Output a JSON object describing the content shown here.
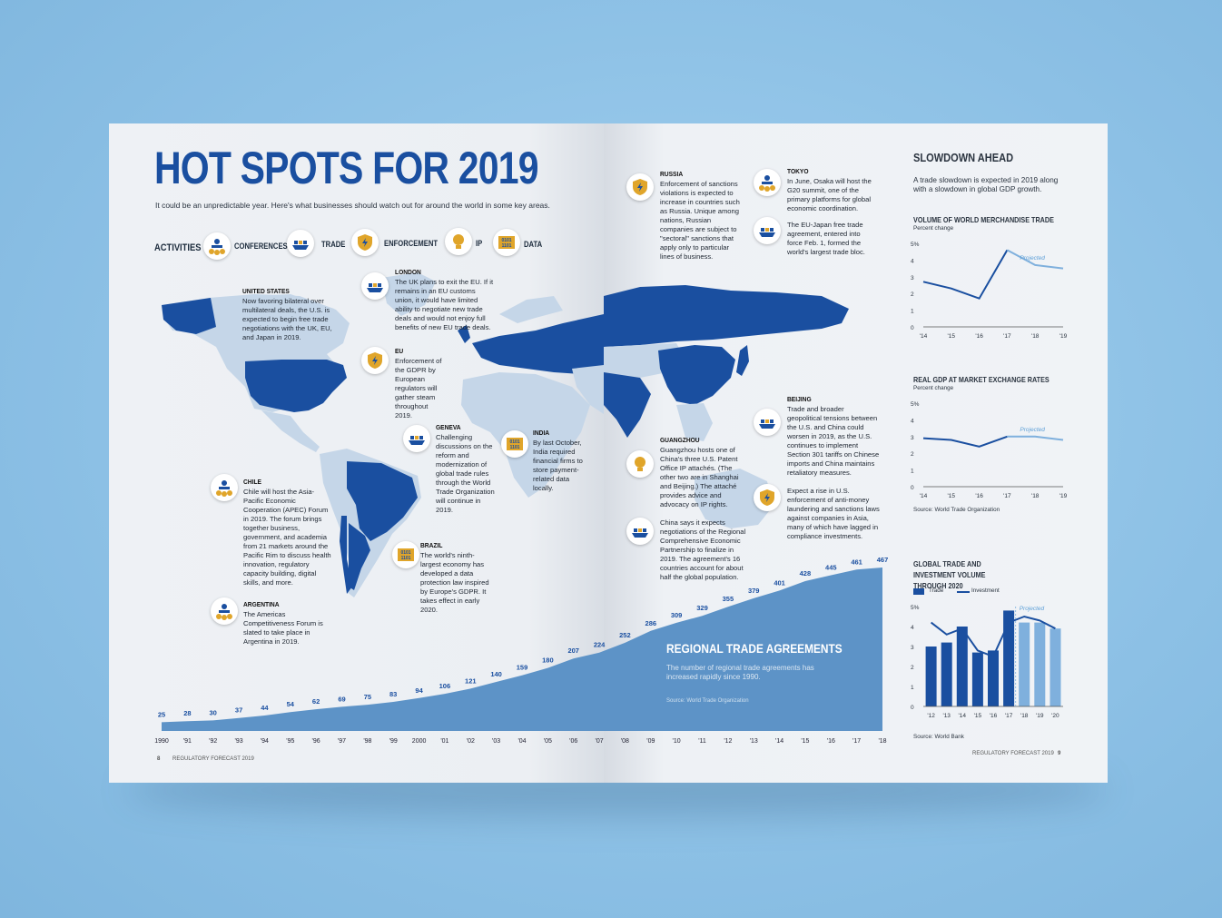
{
  "title": "HOT SPOTS FOR 2019",
  "subtitle": "It could be an unpredictable year. Here's what businesses should watch out for around the world in some key areas.",
  "activities": {
    "label": "ACTIVITIES",
    "items": [
      {
        "label": "CONFERENCES",
        "icon": "conference-icon"
      },
      {
        "label": "TRADE",
        "icon": "ship-icon"
      },
      {
        "label": "ENFORCEMENT",
        "icon": "shield-icon"
      },
      {
        "label": "IP",
        "icon": "lightbulb-icon"
      },
      {
        "label": "DATA",
        "icon": "binary-data-icon"
      }
    ]
  },
  "notes": {
    "us": {
      "title": "UNITED STATES",
      "text": "Now favoring bilateral over multilateral deals, the U.S. is expected to begin free trade negotiations with the UK, EU, and Japan in 2019."
    },
    "london": {
      "title": "LONDON",
      "text": "The UK plans to exit the EU. If it remains in an EU customs union, it would have limited ability to negotiate new trade deals and would not enjoy full benefits of new EU trade deals."
    },
    "eu": {
      "title": "EU",
      "text": "Enforcement of the GDPR by European regulators will gather steam throughout 2019."
    },
    "geneva": {
      "title": "GENEVA",
      "text": "Challenging discussions on the reform and modernization of global trade rules through the World Trade Organization will continue in 2019."
    },
    "india": {
      "title": "INDIA",
      "text": "By last October, India required financial firms to store payment-related data locally."
    },
    "chile": {
      "title": "CHILE",
      "text": "Chile will host the Asia-Pacific Economic Cooperation (APEC) Forum in 2019. The forum brings together business, government, and academia from 21 markets around the Pacific Rim to discuss health innovation, regulatory capacity building, digital skills, and more."
    },
    "brazil": {
      "title": "BRAZIL",
      "text": "The world's ninth-largest economy has developed a data protection law inspired by Europe's GDPR. It takes effect in early 2020."
    },
    "argentina": {
      "title": "ARGENTINA",
      "text": "The Americas Competitiveness Forum is slated to take place in Argentina in 2019."
    },
    "russia": {
      "title": "RUSSIA",
      "text": "Enforcement of sanctions violations is expected to increase in countries such as Russia. Unique among nations, Russian companies are subject to \"sectoral\" sanctions that apply only to particular lines of business."
    },
    "tokyo": {
      "title": "TOKYO",
      "text": "In June, Osaka will host the G20 summit, one of the primary platforms for global economic coordination."
    },
    "japan_eu": {
      "title": "",
      "text": "The EU-Japan free trade agreement, entered into force Feb. 1, formed the world's largest trade bloc."
    },
    "beijing": {
      "title": "BEIJING",
      "text": "Trade and broader geopolitical tensions between the U.S. and China could worsen in 2019, as the U.S. continues to implement Section 301 tariffs on Chinese imports and China maintains retaliatory measures."
    },
    "guangzhou": {
      "title": "GUANGZHOU",
      "text": "Guangzhou hosts one of China's three U.S. Patent Office IP attachés. (The other two are in Shanghai and Beijing.) The attaché provides advice and advocacy on IP rights."
    },
    "asia_enf": {
      "title": "",
      "text": "Expect a rise in U.S. enforcement of anti-money laundering and sanctions laws against companies in Asia, many of which have lagged in compliance investments."
    },
    "rcep": {
      "title": "",
      "text": "China says it expects negotiations of the Regional Comprehensive Economic Partnership to finalize in 2019. The agreement's 16 countries account for about half the global population."
    }
  },
  "regional": {
    "title": "REGIONAL TRADE AGREEMENTS",
    "text": "The number of regional trade agreements has increased rapidly since 1990.",
    "source": "Source: World Trade Organization"
  },
  "sidebar": {
    "heading": "SLOWDOWN AHEAD",
    "text": "A trade slowdown is expected in 2019 along with a slowdown in global GDP growth.",
    "source1": "Source: World Trade Organization",
    "source2": "Source: World Bank"
  },
  "footer": {
    "left_page": "8",
    "left_label": "REGULATORY FORECAST 2019",
    "right_label": "REGULATORY FORECAST 2019",
    "right_page": "9"
  },
  "colors": {
    "brand_blue": "#1a4fa0",
    "light_blue": "#7fb0dd",
    "gold": "#e0a52a"
  },
  "chart_data": [
    {
      "type": "area",
      "title": "REGIONAL TRADE AGREEMENTS",
      "x": [
        "1990",
        "'91",
        "'92",
        "'93",
        "'94",
        "'95",
        "'96",
        "'97",
        "'98",
        "'99",
        "2000",
        "'01",
        "'02",
        "'03",
        "'04",
        "'05",
        "'06",
        "'07",
        "'08",
        "'09",
        "'10",
        "'11",
        "'12",
        "'13",
        "'14",
        "'15",
        "'16",
        "'17",
        "'18"
      ],
      "values": [
        25,
        28,
        30,
        37,
        44,
        54,
        62,
        69,
        75,
        83,
        94,
        106,
        121,
        140,
        159,
        180,
        207,
        224,
        252,
        286,
        309,
        329,
        355,
        379,
        401,
        428,
        445,
        461,
        467
      ]
    },
    {
      "type": "line",
      "title": "VOLUME OF WORLD MERCHANDISE TRADE",
      "ylabel": "Percent change",
      "x": [
        "'14",
        "'15",
        "'16",
        "'17",
        "'18",
        "'19"
      ],
      "values": [
        2.7,
        2.3,
        1.7,
        4.6,
        3.7,
        3.5
      ],
      "projected_from": "'17",
      "annotation": "Projected",
      "yticks": [
        "0",
        "1",
        "2",
        "3",
        "4",
        "5%"
      ],
      "ylim": [
        0,
        5
      ]
    },
    {
      "type": "line",
      "title": "REAL GDP AT MARKET EXCHANGE RATES",
      "ylabel": "Percent change",
      "x": [
        "'14",
        "'15",
        "'16",
        "'17",
        "'18",
        "'19"
      ],
      "values": [
        2.9,
        2.8,
        2.4,
        3.0,
        3.0,
        2.8
      ],
      "projected_from": "'17",
      "annotation": "Projected",
      "yticks": [
        "0",
        "1",
        "2",
        "3",
        "4",
        "5%"
      ],
      "ylim": [
        0,
        5
      ]
    },
    {
      "type": "bar",
      "title": "GLOBAL TRADE AND INVESTMENT VOLUME THROUGH 2020",
      "categories": [
        "'12",
        "'13",
        "'14",
        "'15",
        "'16",
        "'17",
        "'18",
        "'19",
        "'20"
      ],
      "series": [
        {
          "name": "Trade",
          "values": [
            3.0,
            3.2,
            4.0,
            2.7,
            2.8,
            4.8,
            4.2,
            4.2,
            3.9
          ]
        },
        {
          "name": "Investment",
          "values": [
            4.2,
            3.6,
            3.9,
            2.8,
            2.5,
            4.2,
            4.5,
            4.3,
            3.9
          ]
        }
      ],
      "projected_from": "'18",
      "annotation": "Projected",
      "yticks": [
        "0",
        "1",
        "2",
        "3",
        "4",
        "5%"
      ],
      "ylim": [
        0,
        5
      ]
    }
  ]
}
